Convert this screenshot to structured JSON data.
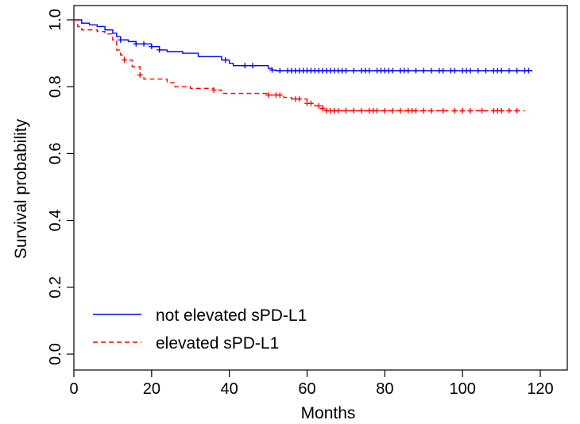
{
  "chart_data": {
    "type": "line",
    "title": "",
    "xlabel": "Months",
    "ylabel": "Survival probability",
    "xlim": [
      0,
      120
    ],
    "ylim": [
      0.0,
      1.0
    ],
    "xticks": [
      0,
      20,
      40,
      60,
      80,
      100,
      120
    ],
    "yticks": [
      0.0,
      0.2,
      0.4,
      0.6,
      0.8,
      1.0
    ],
    "xtick_labels": [
      "0",
      "20",
      "40",
      "60",
      "80",
      "100",
      "120"
    ],
    "ytick_labels": [
      "0.0",
      "0.2",
      "0.4",
      "0.6",
      "0.8",
      "1.0"
    ],
    "grid": false,
    "legend_position": "bottom-left",
    "series": [
      {
        "name": "not elevated sPD-L1",
        "color": "#0000ff",
        "line_style": "solid",
        "steps": [
          [
            0,
            1.0
          ],
          [
            2,
            0.99
          ],
          [
            4,
            0.985
          ],
          [
            6,
            0.98
          ],
          [
            8,
            0.97
          ],
          [
            10,
            0.96
          ],
          [
            11,
            0.95
          ],
          [
            12,
            0.94
          ],
          [
            14,
            0.935
          ],
          [
            16,
            0.928
          ],
          [
            20,
            0.92
          ],
          [
            22,
            0.91
          ],
          [
            24,
            0.905
          ],
          [
            28,
            0.9
          ],
          [
            32,
            0.89
          ],
          [
            38,
            0.88
          ],
          [
            40,
            0.87
          ],
          [
            41,
            0.863
          ],
          [
            50,
            0.855
          ],
          [
            51,
            0.85
          ],
          [
            52,
            0.848
          ],
          [
            118,
            0.848
          ]
        ],
        "censor_times": [
          12,
          16,
          18,
          20,
          22,
          39,
          44,
          46,
          51,
          53,
          55,
          56,
          57,
          58,
          59,
          60,
          61,
          62,
          63,
          64,
          65,
          66,
          67,
          68,
          69,
          70,
          72,
          74,
          75,
          76,
          78,
          79,
          80,
          81,
          82,
          84,
          85,
          86,
          88,
          90,
          92,
          94,
          95,
          97,
          98,
          100,
          101,
          102,
          104,
          106,
          108,
          109,
          110,
          112,
          114,
          116,
          117
        ]
      },
      {
        "name": "elevated sPD-L1",
        "color": "#ff0000",
        "line_style": "dashed",
        "steps": [
          [
            0,
            1.0
          ],
          [
            1,
            0.98
          ],
          [
            2,
            0.97
          ],
          [
            6,
            0.965
          ],
          [
            8,
            0.958
          ],
          [
            10,
            0.94
          ],
          [
            11,
            0.91
          ],
          [
            12,
            0.895
          ],
          [
            13,
            0.88
          ],
          [
            15,
            0.86
          ],
          [
            17,
            0.835
          ],
          [
            18,
            0.823
          ],
          [
            24,
            0.812
          ],
          [
            26,
            0.8
          ],
          [
            30,
            0.795
          ],
          [
            36,
            0.79
          ],
          [
            38,
            0.78
          ],
          [
            50,
            0.775
          ],
          [
            54,
            0.768
          ],
          [
            56,
            0.763
          ],
          [
            60,
            0.75
          ],
          [
            62,
            0.743
          ],
          [
            64,
            0.735
          ],
          [
            65,
            0.728
          ],
          [
            116,
            0.728
          ]
        ],
        "censor_times": [
          13,
          17,
          36,
          50,
          52,
          53,
          57,
          58,
          60,
          61,
          63,
          64,
          65,
          66,
          67,
          68,
          70,
          72,
          74,
          76,
          77,
          78,
          80,
          82,
          84,
          86,
          87,
          88,
          90,
          92,
          95,
          98,
          100,
          102,
          105,
          108,
          109,
          110,
          112,
          114
        ]
      }
    ]
  }
}
